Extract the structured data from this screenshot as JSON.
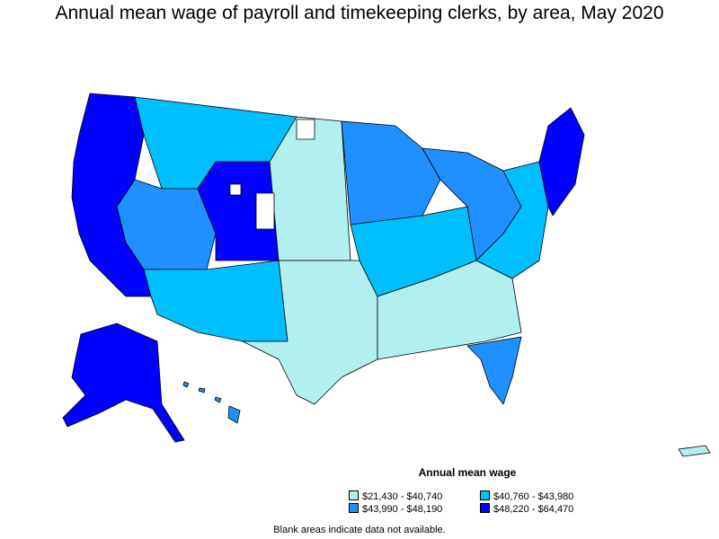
{
  "title": "Annual mean wage of payroll and timekeeping clerks, by area, May 2020",
  "legend": {
    "title": "Annual mean wage",
    "items": [
      {
        "label": "$21,430 - $40,740",
        "color": "#b2efef"
      },
      {
        "label": "$40,760 - $43,980",
        "color": "#00bfff"
      },
      {
        "label": "$43,990 - $48,190",
        "color": "#1e90ff"
      },
      {
        "label": "$48,220 - $64,470",
        "color": "#0000ff"
      }
    ]
  },
  "note": "Blank areas indicate data not available."
}
